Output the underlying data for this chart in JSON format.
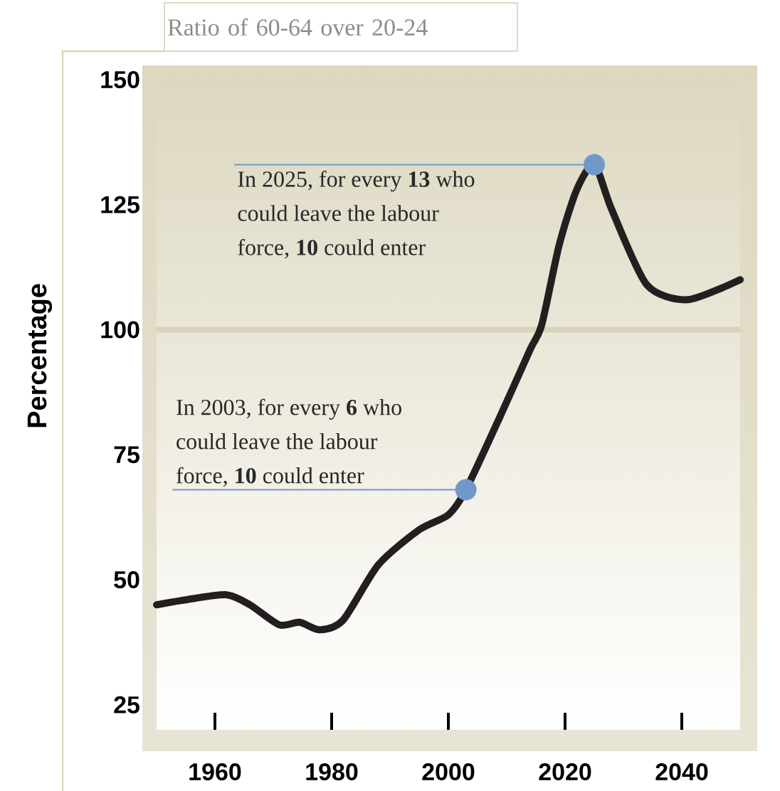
{
  "chart_data": {
    "type": "line",
    "title": "Ratio of 60-64 over 20-24",
    "ylabel": "Percentage",
    "x": [
      1950,
      1955,
      1962,
      1966,
      1971,
      1974.5,
      1978,
      1982,
      1988,
      1995,
      2000,
      2003,
      2009,
      2014,
      2016,
      2019,
      2022,
      2025,
      2028,
      2034,
      2041,
      2050
    ],
    "values": [
      45,
      46,
      47,
      45,
      41,
      41.5,
      40,
      42,
      53,
      60,
      63,
      68,
      83,
      96,
      101,
      117,
      128,
      133,
      124,
      109,
      106,
      110
    ],
    "color": "#231f20",
    "xlim": [
      1950,
      2050
    ],
    "ylim": [
      20,
      150
    ],
    "xticks": [
      1960,
      1980,
      2000,
      2020,
      2040
    ],
    "yticks": [
      25,
      50,
      75,
      100,
      125,
      150
    ],
    "ref_lines": [
      {
        "axis": "y",
        "value": 100,
        "color": "#d8d3b9"
      }
    ],
    "annotations": [
      {
        "text": "In 2025, for every **13** who could leave the labour force, **10** could enter",
        "x": 2025,
        "y": 133
      },
      {
        "text": "In 2003, for every **6** who could leave the labour force, **10** could enter",
        "x": 2003,
        "y": 68
      }
    ],
    "grid": false,
    "legend": false,
    "marker": "none",
    "line_style": "solid"
  }
}
